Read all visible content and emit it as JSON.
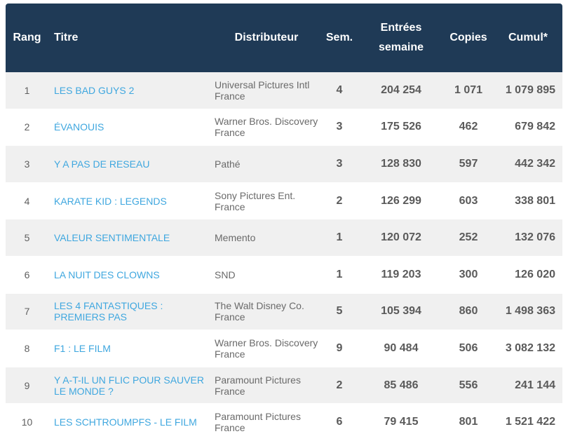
{
  "table": {
    "headers": {
      "rang": "Rang",
      "titre": "Titre",
      "distributeur": "Distributeur",
      "sem": "Sem.",
      "entrees_line1": "Entrées",
      "entrees_line2": "semaine",
      "copies": "Copies",
      "cumul": "Cumul*"
    },
    "rows": [
      {
        "rang": "1",
        "titre": "LES BAD GUYS 2",
        "distributeur": "Universal Pictures Intl France",
        "sem": "4",
        "entrees": "204 254",
        "copies": "1 071",
        "cumul": "1 079 895"
      },
      {
        "rang": "2",
        "titre": "ÉVANOUIS",
        "distributeur": "Warner Bros. Discovery France",
        "sem": "3",
        "entrees": "175 526",
        "copies": "462",
        "cumul": "679 842"
      },
      {
        "rang": "3",
        "titre": "Y A PAS DE RESEAU",
        "distributeur": "Pathé",
        "sem": "3",
        "entrees": "128 830",
        "copies": "597",
        "cumul": "442 342"
      },
      {
        "rang": "4",
        "titre": "KARATE KID : LEGENDS",
        "distributeur": "Sony Pictures Ent. France",
        "sem": "2",
        "entrees": "126 299",
        "copies": "603",
        "cumul": "338 801"
      },
      {
        "rang": "5",
        "titre": "VALEUR SENTIMENTALE",
        "distributeur": "Memento",
        "sem": "1",
        "entrees": "120 072",
        "copies": "252",
        "cumul": "132 076"
      },
      {
        "rang": "6",
        "titre": "LA NUIT DES CLOWNS",
        "distributeur": "SND",
        "sem": "1",
        "entrees": "119 203",
        "copies": "300",
        "cumul": "126 020"
      },
      {
        "rang": "7",
        "titre": "LES 4 FANTASTIQUES : PREMIERS PAS",
        "distributeur": "The Walt Disney Co. France",
        "sem": "5",
        "entrees": "105 394",
        "copies": "860",
        "cumul": "1 498 363"
      },
      {
        "rang": "8",
        "titre": "F1 : LE FILM",
        "distributeur": "Warner Bros. Discovery France",
        "sem": "9",
        "entrees": "90 484",
        "copies": "506",
        "cumul": "3 082 132"
      },
      {
        "rang": "9",
        "titre": "Y A-T-IL UN FLIC POUR SAUVER LE MONDE ?",
        "distributeur": "Paramount Pictures France",
        "sem": "2",
        "entrees": "85 486",
        "copies": "556",
        "cumul": "241 144"
      },
      {
        "rang": "10",
        "titre": "LES SCHTROUMPFS - LE FILM",
        "distributeur": "Paramount Pictures France",
        "sem": "6",
        "entrees": "79 415",
        "copies": "801",
        "cumul": "1 521 422"
      }
    ]
  }
}
